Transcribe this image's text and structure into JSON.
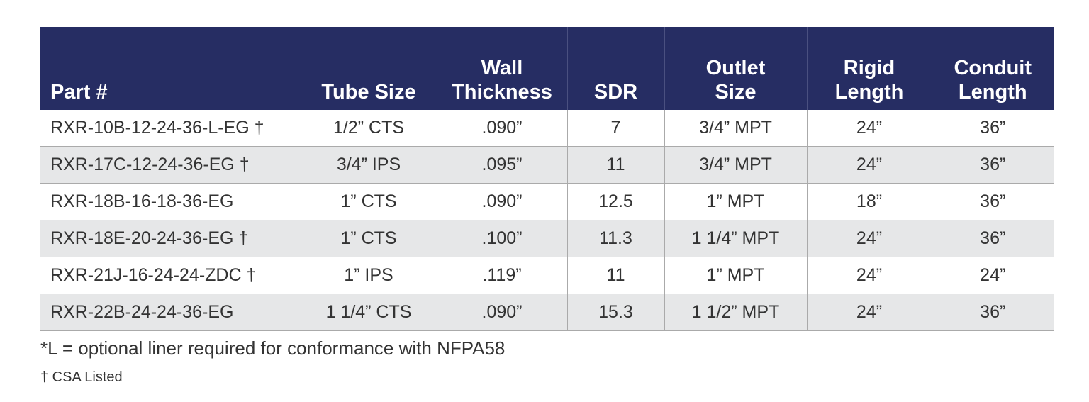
{
  "table": {
    "header": [
      [
        "Part #"
      ],
      [
        "Tube Size"
      ],
      [
        "Wall",
        "Thickness"
      ],
      [
        "SDR"
      ],
      [
        "Outlet",
        "Size"
      ],
      [
        "Rigid",
        "Length"
      ],
      [
        "Conduit",
        "Length"
      ]
    ],
    "rows": [
      [
        "RXR-10B-12-24-36-L-EG †",
        "1/2” CTS",
        ".090”",
        "7",
        "3/4” MPT",
        "24”",
        "36”"
      ],
      [
        "RXR-17C-12-24-36-EG †",
        "3/4” IPS",
        ".095”",
        "11",
        "3/4” MPT",
        "24”",
        "36”"
      ],
      [
        "RXR-18B-16-18-36-EG",
        "1” CTS",
        ".090”",
        "12.5",
        "1” MPT",
        "18”",
        "36”"
      ],
      [
        "RXR-18E-20-24-36-EG †",
        "1” CTS",
        ".100”",
        "11.3",
        "1 1/4” MPT",
        "24”",
        "36”"
      ],
      [
        "RXR-21J-16-24-24-ZDC †",
        "1” IPS",
        ".119”",
        "11",
        "1” MPT",
        "24”",
        "24”"
      ],
      [
        "RXR-22B-24-24-36-EG",
        "1 1/4” CTS",
        ".090”",
        "15.3",
        "1 1/2” MPT",
        "24”",
        "36”"
      ]
    ]
  },
  "footnotes": [
    "*L = optional liner required for conformance with NFPA58",
    "† CSA Listed"
  ]
}
